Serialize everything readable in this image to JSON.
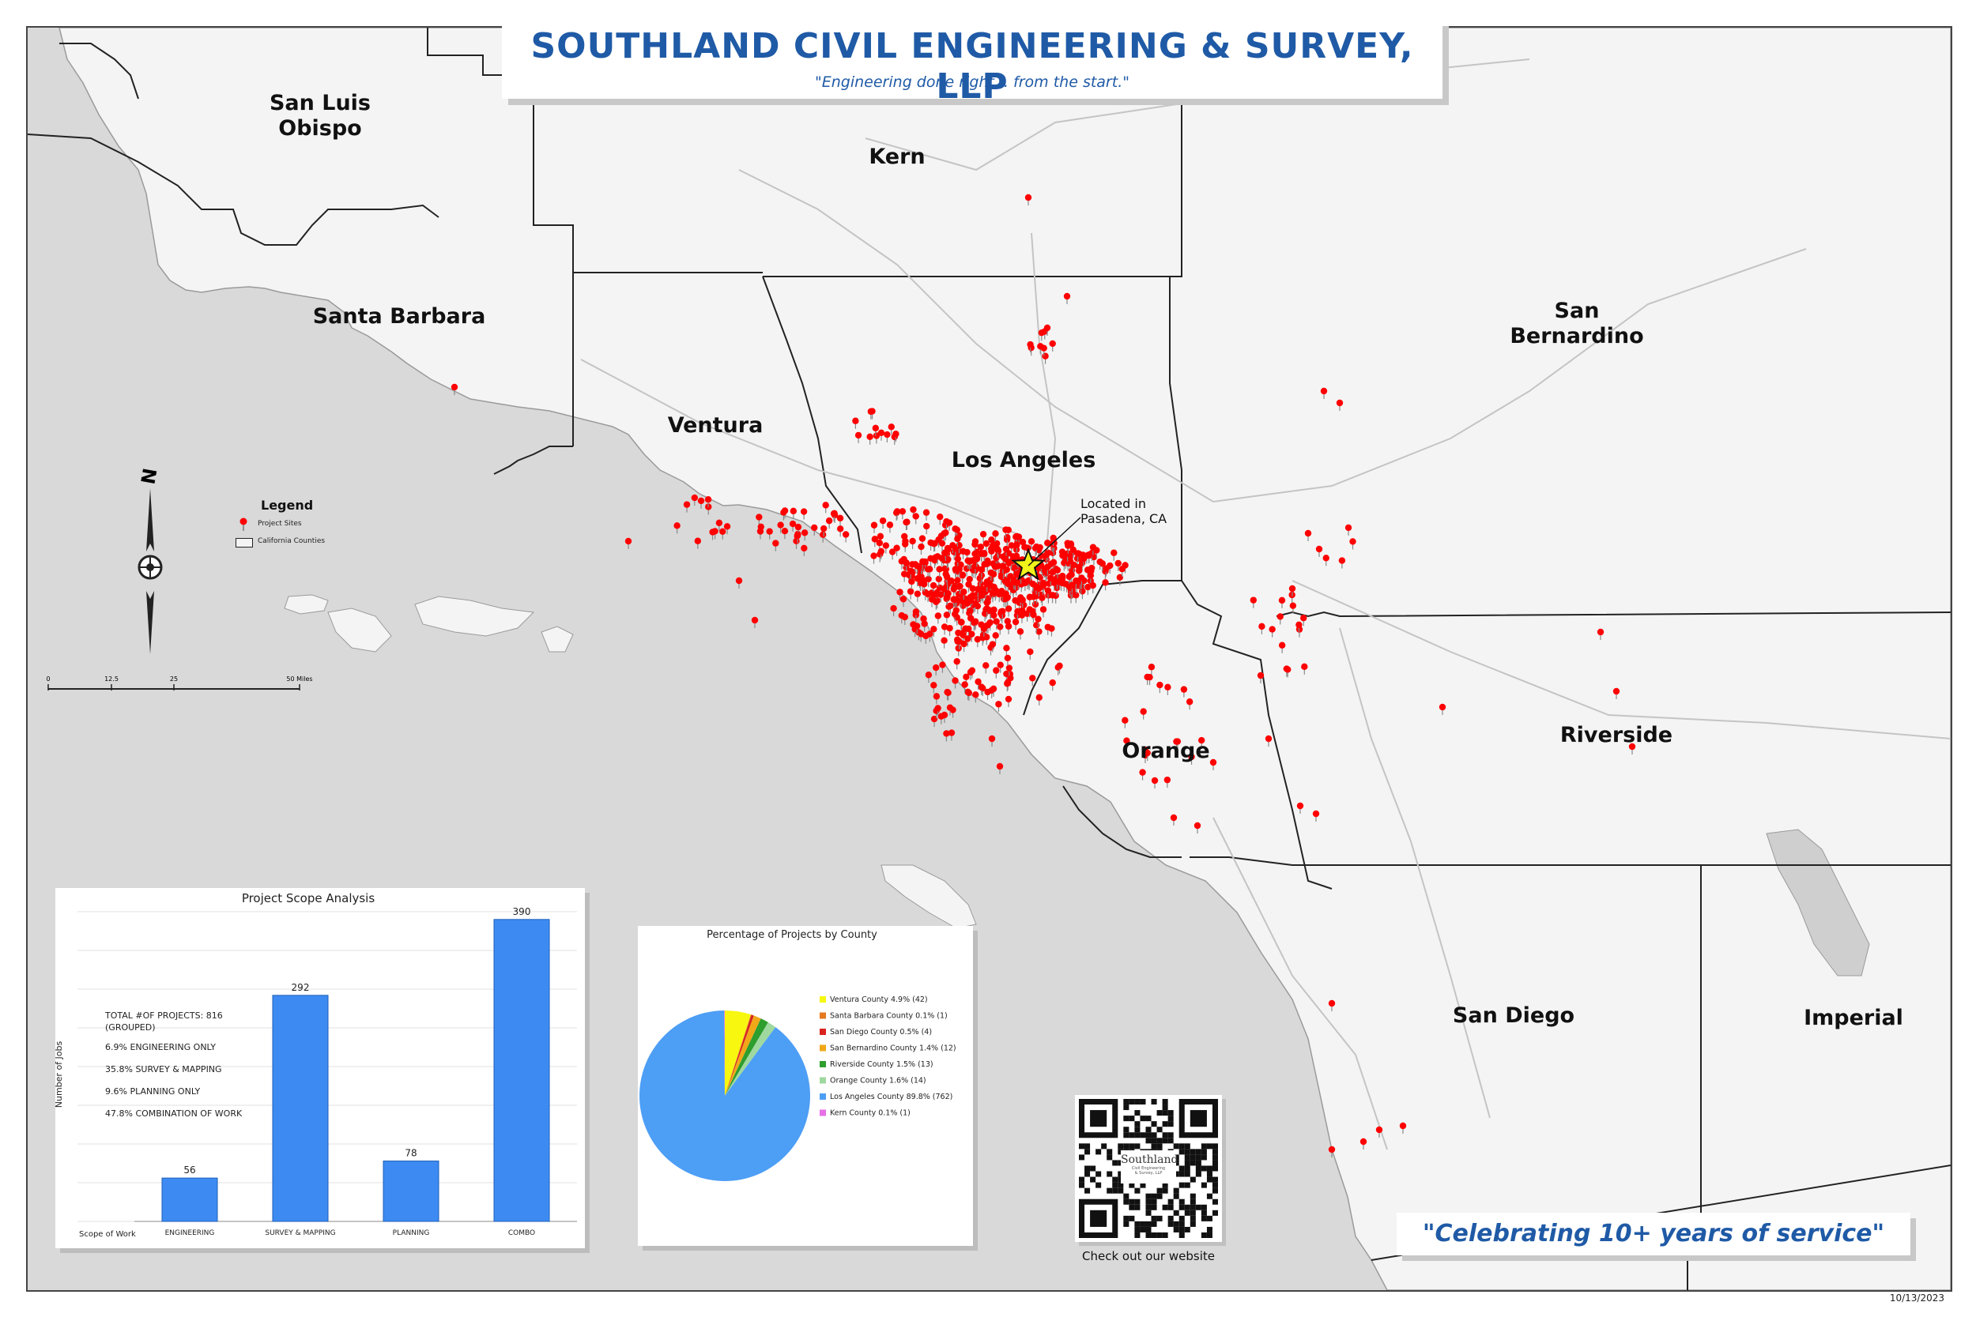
{
  "title": {
    "main": "SOUTHLAND CIVIL ENGINEERING & SURVEY, LLP",
    "tagline": "\"Engineering done right... from the start.\""
  },
  "counties": [
    {
      "id": "san-luis-obispo",
      "name": "San Luis\nObispo"
    },
    {
      "id": "kern",
      "name": "Kern"
    },
    {
      "id": "santa-barbara",
      "name": "Santa Barbara"
    },
    {
      "id": "ventura",
      "name": "Ventura"
    },
    {
      "id": "los-angeles",
      "name": "Los Angeles"
    },
    {
      "id": "san-bernardino",
      "name": "San\nBernardino"
    },
    {
      "id": "riverside",
      "name": "Riverside"
    },
    {
      "id": "orange",
      "name": "Orange"
    },
    {
      "id": "san-diego",
      "name": "San Diego"
    },
    {
      "id": "imperial",
      "name": "Imperial"
    }
  ],
  "office": {
    "label": "Located in\nPasadena, CA",
    "marker": "star-icon",
    "color": "#f2f21a"
  },
  "legend": {
    "title": "Legend",
    "items": [
      {
        "icon": "pin-icon",
        "label": "Project Sites",
        "color": "#ff0000"
      },
      {
        "icon": "county-outline-icon",
        "label": "California Counties"
      }
    ]
  },
  "north_arrow": {
    "label": "N",
    "icon": "north-arrow-icon"
  },
  "scale_bar": {
    "ticks": [
      "0",
      "12.5",
      "25",
      "50 Miles"
    ]
  },
  "bar_chart": {
    "title": "Project Scope Analysis",
    "ylabel": "Number of Jobs",
    "xlabel": "Scope of Work",
    "notes": [
      "TOTAL #OF PROJECTS: 816",
      "(GROUPED)",
      "6.9% ENGINEERING ONLY",
      "35.8% SURVEY & MAPPING",
      "9.6% PLANNING ONLY",
      "47.8% COMBINATION OF WORK"
    ]
  },
  "pie_chart": {
    "title": "Percentage of Projects by County"
  },
  "chart_data": [
    {
      "type": "bar",
      "title": "Project Scope Analysis",
      "xlabel": "Scope of Work",
      "ylabel": "Number of Jobs",
      "categories": [
        "ENGINEERING",
        "SURVEY & MAPPING",
        "PLANNING",
        "COMBO"
      ],
      "values": [
        56,
        292,
        78,
        390
      ],
      "ylim": [
        0,
        400
      ],
      "grid": true,
      "color": "#3d8bf2"
    },
    {
      "type": "pie",
      "title": "Percentage of Projects by County",
      "labels": [
        "Ventura County 4.9% (42)",
        "Santa Barbara County 0.1% (1)",
        "San Diego County 0.5% (4)",
        "San Bernardino County 1.4% (12)",
        "Riverside County 1.5% (13)",
        "Orange County 1.6% (14)",
        "Los Angeles County 89.8% (762)",
        "Kern County 0.1% (1)"
      ],
      "values": [
        42,
        1,
        4,
        12,
        13,
        14,
        762,
        1
      ],
      "colors": [
        "#f7f70f",
        "#e57a1f",
        "#d8241f",
        "#f0a818",
        "#2e9e2e",
        "#9fd99f",
        "#4d9ef5",
        "#e66fe6"
      ],
      "legend": "right"
    }
  ],
  "qr": {
    "caption": "Check out our website",
    "logo_text": "Southland",
    "logo_sub": "Civil Engineering\n& Survey, LLP"
  },
  "footer": {
    "slogan": "\"Celebrating 10+ years of service\""
  },
  "date": "10/13/2023",
  "colors": {
    "brand_blue": "#1f5aa6",
    "land": "#f4f4f4",
    "ocean": "#d9d9d9",
    "pin": "#ff0000"
  }
}
